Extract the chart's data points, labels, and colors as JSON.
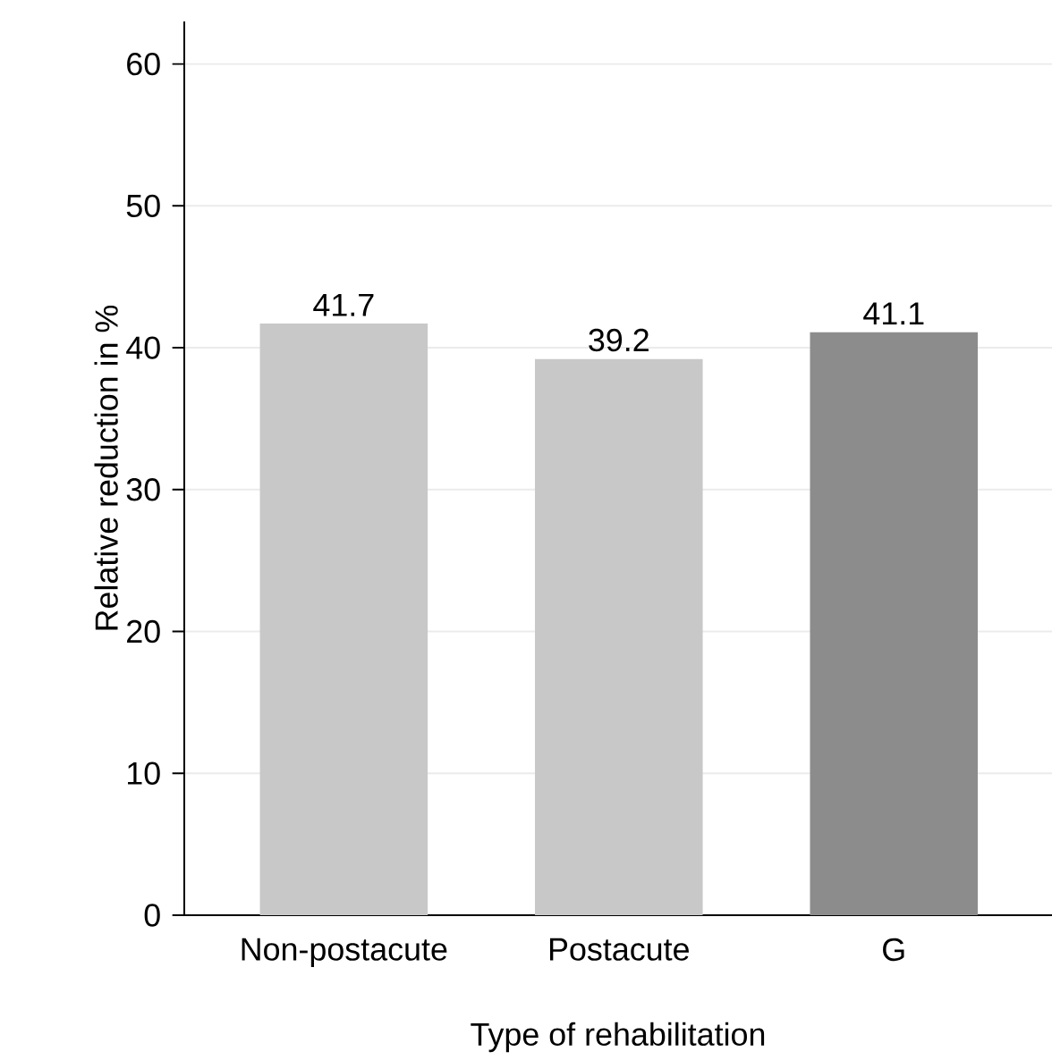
{
  "chart_data": {
    "type": "bar",
    "xlabel": "Type of rehabilitation",
    "ylabel": "Relative reduction in %",
    "categories": [
      "Non-postacute",
      "Postacute",
      "G"
    ],
    "values": [
      41.7,
      39.2,
      41.1
    ],
    "colors": [
      "#c8c8c8",
      "#c8c8c8",
      "#8c8c8c"
    ],
    "ylim": [
      0,
      63
    ],
    "yticks": [
      0,
      10,
      20,
      30,
      40,
      50,
      60
    ],
    "grid": "y",
    "data_labels": true
  }
}
